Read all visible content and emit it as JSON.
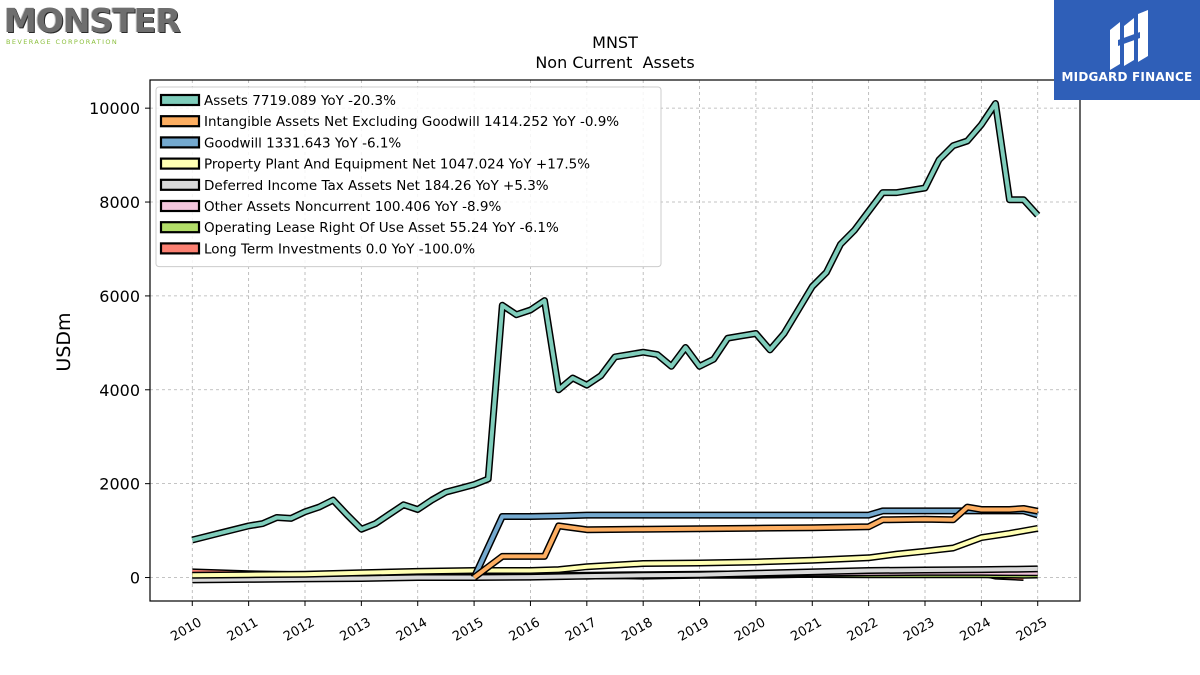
{
  "logos": {
    "left_word": "MONSTER",
    "left_sub": "BEVERAGE CORPORATION",
    "right_brand": "MIDGARD FINANCE"
  },
  "chart_data": {
    "type": "line",
    "title": "MNST",
    "subtitle": "Non Current  Assets",
    "ylabel": "USDm",
    "xlim": [
      2009.25,
      2025.75
    ],
    "ylim": [
      -500,
      10600
    ],
    "xticks": [
      "2010",
      "2011",
      "2012",
      "2013",
      "2014",
      "2015",
      "2016",
      "2017",
      "2018",
      "2019",
      "2020",
      "2021",
      "2022",
      "2023",
      "2024",
      "2025"
    ],
    "yticks": [
      0,
      2000,
      4000,
      6000,
      8000,
      10000
    ],
    "grid": true,
    "legend_position": "top-left",
    "series": [
      {
        "name": "Assets",
        "legend": "Assets  7719.089 YoY -20.3%",
        "color": "#7fcdbb",
        "x": [
          2010.0,
          2010.5,
          2011.0,
          2011.25,
          2011.5,
          2011.75,
          2012.0,
          2012.25,
          2012.5,
          2012.75,
          2013.0,
          2013.25,
          2013.5,
          2013.75,
          2014.0,
          2014.25,
          2014.5,
          2014.75,
          2015.0,
          2015.25,
          2015.5,
          2015.75,
          2016.0,
          2016.25,
          2016.5,
          2016.75,
          2017.0,
          2017.25,
          2017.5,
          2017.75,
          2018.0,
          2018.25,
          2018.5,
          2018.75,
          2019.0,
          2019.25,
          2019.5,
          2019.75,
          2020.0,
          2020.25,
          2020.5,
          2020.75,
          2021.0,
          2021.25,
          2021.5,
          2021.75,
          2022.0,
          2022.25,
          2022.5,
          2022.75,
          2023.0,
          2023.25,
          2023.5,
          2023.75,
          2024.0,
          2024.25,
          2024.5,
          2024.75,
          2025.0
        ],
        "values": [
          800,
          950,
          1100,
          1150,
          1280,
          1260,
          1400,
          1500,
          1650,
          1330,
          1030,
          1150,
          1350,
          1550,
          1450,
          1650,
          1820,
          1900,
          1980,
          2100,
          5800,
          5600,
          5700,
          5900,
          4000,
          4250,
          4100,
          4300,
          4700,
          4750,
          4800,
          4750,
          4500,
          4900,
          4500,
          4650,
          5100,
          5150,
          5200,
          4850,
          5200,
          5700,
          6200,
          6500,
          7100,
          7400,
          7800,
          8200,
          8200,
          8250,
          8300,
          8900,
          9200,
          9300,
          9650,
          10100,
          8050,
          8050,
          7719
        ]
      },
      {
        "name": "Intangible Assets Net Excluding Goodwill",
        "legend": "Intangible Assets Net Excluding Goodwill  1414.252 YoY -0.9%",
        "color": "#fdae61",
        "x": [
          2015.0,
          2015.5,
          2016.0,
          2016.25,
          2016.5,
          2017.0,
          2018.0,
          2019.0,
          2020.0,
          2021.0,
          2022.0,
          2022.25,
          2023.0,
          2023.5,
          2023.75,
          2024.0,
          2024.5,
          2024.75,
          2025.0
        ],
        "values": [
          0,
          450,
          450,
          450,
          1100,
          1020,
          1030,
          1040,
          1050,
          1060,
          1080,
          1230,
          1240,
          1230,
          1500,
          1450,
          1450,
          1470,
          1414
        ]
      },
      {
        "name": "Goodwill",
        "legend": "Goodwill  1331.643 YoY -6.1%",
        "color": "#74a9cf",
        "x": [
          2015.0,
          2015.5,
          2016.0,
          2016.5,
          2017.0,
          2018.0,
          2019.0,
          2020.0,
          2021.0,
          2022.0,
          2022.25,
          2023.0,
          2023.5,
          2024.0,
          2024.5,
          2024.75,
          2025.0
        ],
        "values": [
          0,
          1300,
          1300,
          1310,
          1330,
          1330,
          1330,
          1330,
          1330,
          1330,
          1420,
          1420,
          1420,
          1420,
          1420,
          1420,
          1332
        ]
      },
      {
        "name": "Property Plant And Equipment Net",
        "legend": "Property Plant And Equipment Net  1047.024 YoY +17.5%",
        "color": "#ffffb3",
        "x": [
          2010.0,
          2011.0,
          2012.0,
          2013.0,
          2014.0,
          2015.0,
          2016.0,
          2016.5,
          2017.0,
          2018.0,
          2019.0,
          2020.0,
          2021.0,
          2022.0,
          2022.5,
          2023.0,
          2023.5,
          2024.0,
          2024.5,
          2025.0
        ],
        "values": [
          50,
          60,
          70,
          100,
          130,
          150,
          150,
          170,
          230,
          300,
          310,
          330,
          370,
          420,
          500,
          560,
          630,
          850,
          940,
          1047
        ]
      },
      {
        "name": "Deferred Income Tax Assets Net",
        "legend": "Deferred Income Tax Assets Net  184.26 YoY +5.3%",
        "color": "#d9d9d9",
        "x": [
          2010.0,
          2011.0,
          2012.0,
          2013.0,
          2014.0,
          2015.0,
          2016.0,
          2017.0,
          2018.0,
          2019.0,
          2020.0,
          2021.0,
          2022.0,
          2023.0,
          2024.0,
          2024.5,
          2025.0
        ],
        "values": [
          -50,
          -40,
          -30,
          -20,
          0,
          0,
          10,
          30,
          50,
          60,
          90,
          120,
          150,
          160,
          170,
          175,
          184
        ]
      },
      {
        "name": "Other Assets Noncurrent",
        "legend": "Other Assets Noncurrent  100.406 YoY -8.9%",
        "color": "#f4c6de",
        "x": [
          2010.0,
          2011.0,
          2012.0,
          2013.0,
          2014.0,
          2015.0,
          2016.0,
          2017.0,
          2018.0,
          2019.0,
          2020.0,
          2021.0,
          2022.0,
          2023.0,
          2024.0,
          2024.5,
          2025.0
        ],
        "values": [
          20,
          20,
          20,
          20,
          20,
          20,
          40,
          50,
          60,
          70,
          80,
          90,
          100,
          110,
          110,
          105,
          100
        ]
      },
      {
        "name": "Operating Lease Right Of Use Asset",
        "legend": "Operating Lease Right Of Use Asset  55.24 YoY -6.1%",
        "color": "#b3de69",
        "x": [
          2019.0,
          2020.0,
          2021.0,
          2022.0,
          2023.0,
          2024.0,
          2024.75,
          2025.0
        ],
        "values": [
          60,
          60,
          65,
          60,
          58,
          58,
          50,
          55
        ]
      },
      {
        "name": "Long Term Investments",
        "legend": "Long Term Investments  0.0 YoY -100.0%",
        "color": "#fb8072",
        "x": [
          2010.0,
          2011.0,
          2012.0,
          2013.0,
          2014.0,
          2014.5,
          2015.0,
          2015.5,
          2016.0,
          2016.5,
          2017.0,
          2017.5,
          2018.0,
          2019.0,
          2020.0,
          2021.0,
          2021.5,
          2022.0,
          2022.5,
          2023.0,
          2023.5,
          2024.0,
          2024.25,
          2024.75
        ],
        "values": [
          120,
          80,
          60,
          40,
          30,
          60,
          30,
          30,
          60,
          40,
          30,
          40,
          30,
          50,
          50,
          70,
          110,
          90,
          120,
          100,
          80,
          100,
          30,
          0
        ]
      }
    ]
  }
}
